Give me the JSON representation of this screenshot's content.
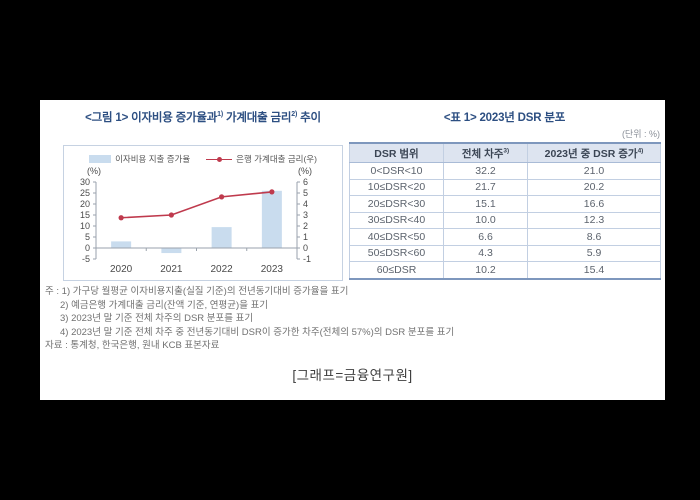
{
  "page": {
    "caption": "[그래프=금융연구원]"
  },
  "figure": {
    "title_pre": "<그림 1> 이자비용 증가율과",
    "title_sup1": "1)",
    "title_mid": " 가계대출 금리",
    "title_sup2": "2)",
    "title_post": " 추이"
  },
  "chart_data": {
    "type": "bar",
    "categories": [
      "2020",
      "2021",
      "2022",
      "2023"
    ],
    "series": [
      {
        "name": "이자비용 지출 증가율",
        "type": "bar",
        "axis": "left",
        "values": [
          3.0,
          -2.3,
          9.5,
          26.0
        ]
      },
      {
        "name": "은행 가계대출 금리(우)",
        "type": "line",
        "axis": "right",
        "values": [
          2.75,
          3.0,
          4.65,
          5.1
        ]
      }
    ],
    "left_axis": {
      "label": "(%)",
      "min": -5,
      "max": 30,
      "ticks": [
        30,
        25,
        20,
        15,
        10,
        5,
        0,
        -5
      ]
    },
    "right_axis": {
      "label": "(%)",
      "min": -1,
      "max": 6,
      "ticks": [
        6,
        5,
        4,
        3,
        2,
        1,
        0,
        -1
      ]
    },
    "legend_position": "top",
    "grid": false,
    "colors": {
      "bar": "#c9dcee",
      "line": "#bf3a4d",
      "axis": "#9aa2ac"
    }
  },
  "table": {
    "title": "<표 1> 2023년 DSR 분포",
    "unit": "(단위 : %)",
    "headers": [
      {
        "text": "DSR 범위",
        "sup": ""
      },
      {
        "text": "전체 차주",
        "sup": "3)"
      },
      {
        "text": "2023년 중 DSR 증가",
        "sup": "4)"
      }
    ],
    "rows": [
      [
        "0<DSR<10",
        "32.2",
        "21.0"
      ],
      [
        "10≤DSR<20",
        "21.7",
        "20.2"
      ],
      [
        "20≤DSR<30",
        "15.1",
        "16.6"
      ],
      [
        "30≤DSR<40",
        "10.0",
        "12.3"
      ],
      [
        "40≤DSR<50",
        "6.6",
        "8.6"
      ],
      [
        "50≤DSR<60",
        "4.3",
        "5.9"
      ],
      [
        "60≤DSR",
        "10.2",
        "15.4"
      ]
    ]
  },
  "notes": {
    "lines": [
      "주 : 1) 가구당 월평균 이자비용지출(실질 기준)의 전년동기대비 증가율을 표기",
      "2) 예금은행 가계대출 금리(잔액 기준, 연평균)을 표기",
      "3) 2023년 말 기준 전체 차주의 DSR 분포를 표기",
      "4) 2023년 말 기준 전체 차주 중 전년동기대비 DSR이 증가한 차주(전체의 57%)의 DSR 분포를 표기",
      "자료 : 통계청, 한국은행, 원내 KCB 표본자료"
    ]
  }
}
